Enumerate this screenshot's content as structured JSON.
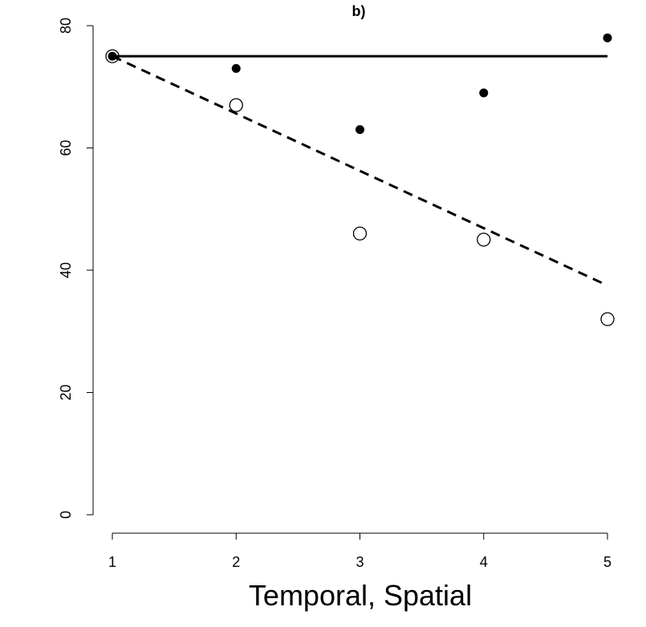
{
  "chart_data": {
    "type": "scatter",
    "title": "b)",
    "xlabel": "Temporal, Spatial",
    "ylabel": "",
    "xlim": [
      1,
      5
    ],
    "ylim": [
      0,
      80
    ],
    "xticks": [
      1,
      2,
      3,
      4,
      5
    ],
    "yticks": [
      0,
      20,
      40,
      60,
      80
    ],
    "grid": false,
    "legend": "none",
    "series": [
      {
        "marker": "filled-circle",
        "x": [
          1,
          2,
          3,
          4,
          5
        ],
        "y": [
          75,
          73,
          63,
          69,
          78
        ]
      },
      {
        "marker": "open-circle",
        "x": [
          1,
          2,
          3,
          4,
          5
        ],
        "y": [
          75,
          67,
          46,
          45,
          32
        ]
      }
    ],
    "lines": [
      {
        "style": "solid",
        "x": [
          1,
          5
        ],
        "y": [
          75,
          75
        ]
      },
      {
        "style": "dashed",
        "x": [
          1,
          5
        ],
        "y": [
          75,
          37.5
        ]
      }
    ]
  }
}
